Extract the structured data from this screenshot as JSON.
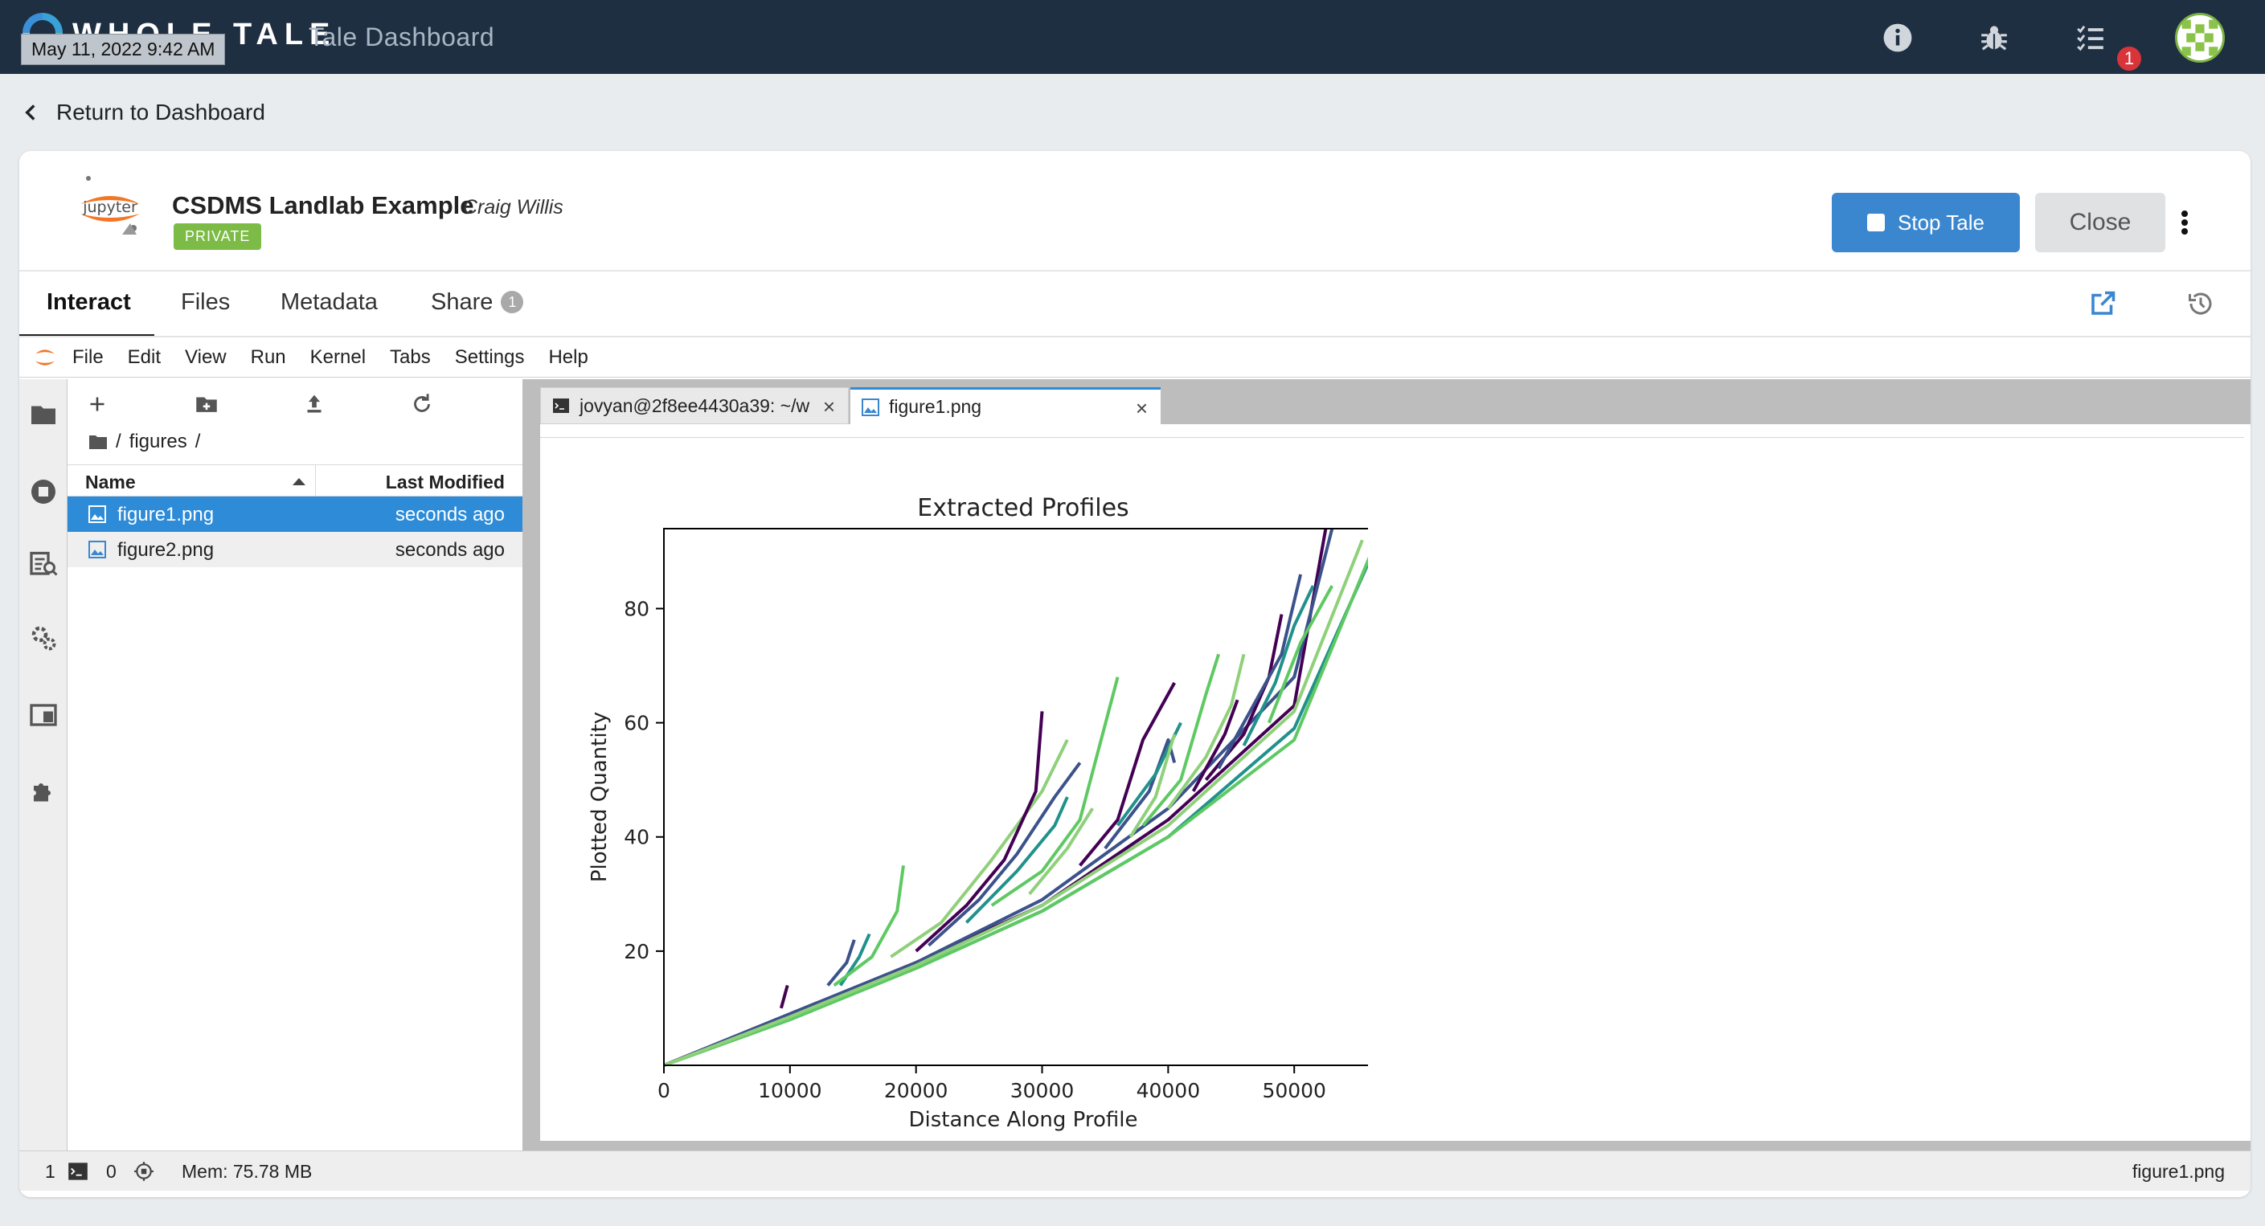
{
  "topbar": {
    "brand": "WHOLE TALE",
    "timestamp": "May 11, 2022 9:42 AM",
    "title": "Tale Dashboard",
    "notification_count": "1",
    "colors": {
      "bar": "#1f2f42",
      "title": "#a9b6c4"
    }
  },
  "return_link": "Return to Dashboard",
  "tale": {
    "logo_text": "jupyter",
    "name": "CSDMS Landlab Example",
    "author": "Craig Willis",
    "visibility": "PRIVATE",
    "stop_label": "Stop Tale",
    "close_label": "Close"
  },
  "tabs": [
    {
      "label": "Interact",
      "active": true
    },
    {
      "label": "Files"
    },
    {
      "label": "Metadata"
    },
    {
      "label": "Share",
      "badge": "1"
    }
  ],
  "menu": [
    "File",
    "Edit",
    "View",
    "Run",
    "Kernel",
    "Tabs",
    "Settings",
    "Help"
  ],
  "filebrowser": {
    "path_root": "/",
    "path": "figures",
    "path_sep": "/",
    "col_name": "Name",
    "col_modified": "Last Modified",
    "files": [
      {
        "name": "figure1.png",
        "modified": "seconds ago",
        "selected": true
      },
      {
        "name": "figure2.png",
        "modified": "seconds ago",
        "selected": false
      }
    ]
  },
  "doc_tabs": [
    {
      "label": "jovyan@2f8ee4430a39: ~/w"
    },
    {
      "label": "figure1.png"
    }
  ],
  "statusbar": {
    "terminals": "1",
    "kernels": "0",
    "memory": "Mem: 75.78 MB",
    "active_file": "figure1.png"
  },
  "chart_data": {
    "type": "line",
    "title": "Extracted Profiles",
    "xlabel": "Distance Along Profile",
    "ylabel": "Plotted Quantity",
    "xlim": [
      0,
      57000
    ],
    "ylim": [
      0,
      94
    ],
    "xticks": [
      0,
      10000,
      20000,
      30000,
      40000,
      50000
    ],
    "yticks": [
      20,
      40,
      60,
      80
    ],
    "grid": false,
    "colormap": [
      "#440154",
      "#3b528b",
      "#21918c",
      "#5ec962",
      "#8fd07a"
    ],
    "series": [
      {
        "values": [
          [
            0,
            0
          ],
          [
            10000,
            9
          ],
          [
            20000,
            18
          ],
          [
            30000,
            28
          ],
          [
            40000,
            43
          ],
          [
            50000,
            63
          ],
          [
            52500,
            94
          ]
        ]
      },
      {
        "values": [
          [
            0,
            0
          ],
          [
            10000,
            9
          ],
          [
            20000,
            18
          ],
          [
            30000,
            29
          ],
          [
            40000,
            45
          ],
          [
            50000,
            68
          ],
          [
            53000,
            94
          ]
        ]
      },
      {
        "values": [
          [
            0,
            0
          ],
          [
            10000,
            8
          ],
          [
            20000,
            17
          ],
          [
            30000,
            27
          ],
          [
            40000,
            40
          ],
          [
            50000,
            59
          ],
          [
            56700,
            92
          ]
        ]
      },
      {
        "values": [
          [
            0,
            0
          ],
          [
            10000,
            8
          ],
          [
            20000,
            17
          ],
          [
            30000,
            27
          ],
          [
            40000,
            40
          ],
          [
            50000,
            57
          ],
          [
            56900,
            94
          ]
        ]
      },
      {
        "values": [
          [
            0,
            0
          ],
          [
            10000,
            8.5
          ],
          [
            20000,
            17.5
          ],
          [
            30000,
            28
          ],
          [
            40000,
            42
          ],
          [
            50000,
            62
          ],
          [
            55400,
            92
          ]
        ]
      },
      {
        "values": [
          [
            9300,
            10
          ],
          [
            9800,
            14
          ]
        ]
      },
      {
        "values": [
          [
            13000,
            14
          ],
          [
            14500,
            18
          ],
          [
            15100,
            22
          ]
        ]
      },
      {
        "values": [
          [
            14000,
            14
          ],
          [
            15500,
            19
          ],
          [
            16300,
            23
          ]
        ]
      },
      {
        "values": [
          [
            13500,
            14
          ],
          [
            16500,
            19
          ],
          [
            18500,
            27
          ],
          [
            19000,
            35
          ]
        ]
      },
      {
        "values": [
          [
            18000,
            19
          ],
          [
            22000,
            25
          ],
          [
            26000,
            36
          ],
          [
            30000,
            48
          ],
          [
            32000,
            57
          ]
        ]
      },
      {
        "values": [
          [
            20000,
            20
          ],
          [
            24000,
            28
          ],
          [
            27000,
            36
          ],
          [
            29500,
            48
          ],
          [
            30000,
            62
          ]
        ]
      },
      {
        "values": [
          [
            21000,
            21
          ],
          [
            25000,
            29
          ],
          [
            28000,
            37
          ],
          [
            31000,
            47
          ],
          [
            33000,
            53
          ]
        ]
      },
      {
        "values": [
          [
            24000,
            25
          ],
          [
            28000,
            34
          ],
          [
            31000,
            42
          ],
          [
            32000,
            47
          ]
        ]
      },
      {
        "values": [
          [
            26000,
            28
          ],
          [
            30000,
            34
          ],
          [
            33000,
            43
          ],
          [
            36000,
            68
          ]
        ]
      },
      {
        "values": [
          [
            29000,
            30
          ],
          [
            32000,
            38
          ],
          [
            34000,
            45
          ]
        ]
      },
      {
        "values": [
          [
            33000,
            35
          ],
          [
            36000,
            43
          ],
          [
            38000,
            57
          ],
          [
            40500,
            67
          ]
        ]
      },
      {
        "values": [
          [
            35000,
            38
          ],
          [
            38500,
            48
          ],
          [
            40000,
            57
          ],
          [
            40500,
            53
          ]
        ]
      },
      {
        "values": [
          [
            36000,
            42
          ],
          [
            39000,
            51
          ],
          [
            41000,
            60
          ]
        ]
      },
      {
        "values": [
          [
            38000,
            42
          ],
          [
            41000,
            50
          ],
          [
            43000,
            65
          ],
          [
            44000,
            72
          ]
        ]
      },
      {
        "values": [
          [
            40000,
            45
          ],
          [
            43000,
            54
          ],
          [
            45000,
            63
          ],
          [
            46000,
            72
          ]
        ]
      },
      {
        "values": [
          [
            43000,
            50
          ],
          [
            46000,
            58
          ],
          [
            48000,
            68
          ],
          [
            49000,
            79
          ]
        ]
      },
      {
        "values": [
          [
            44000,
            52
          ],
          [
            47000,
            64
          ],
          [
            49000,
            72
          ],
          [
            50500,
            86
          ]
        ]
      },
      {
        "values": [
          [
            46000,
            56
          ],
          [
            48500,
            67
          ],
          [
            50000,
            77
          ],
          [
            51500,
            84
          ]
        ]
      },
      {
        "values": [
          [
            48000,
            60
          ],
          [
            50500,
            74
          ],
          [
            52000,
            80
          ],
          [
            53000,
            84
          ]
        ]
      },
      {
        "values": [
          [
            37000,
            40
          ],
          [
            39000,
            47
          ],
          [
            40500,
            58
          ]
        ]
      },
      {
        "values": [
          [
            42000,
            48
          ],
          [
            44500,
            58
          ],
          [
            45500,
            64
          ]
        ]
      }
    ]
  }
}
